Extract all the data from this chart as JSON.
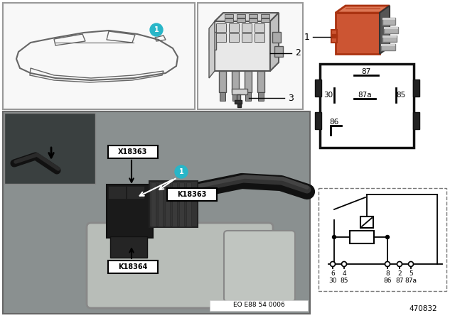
{
  "bg_color": "#ffffff",
  "fig_width": 6.4,
  "fig_height": 4.48,
  "dpi": 100,
  "relay_orange": "#cc5533",
  "relay_orange_dark": "#aa3311",
  "relay_orange_light": "#dd7755",
  "teal": "#29b6c8",
  "photo_bg": "#8a9090",
  "photo_bg2": "#7a8888",
  "dark_photo_bg": "#3a4040",
  "car_box_bg": "#f0f0f0",
  "socket_box_bg": "#f5f5f5",
  "eo_text": "EO E88 54 0006",
  "part_num": "470832",
  "pin_top": "87",
  "pin_mid_l": "30",
  "pin_mid_c": "87a",
  "pin_mid_r": "85",
  "pin_bot": "86",
  "schematic_nums": [
    "6",
    "4",
    "8",
    "2",
    "5"
  ],
  "schematic_names": [
    "30",
    "85",
    "86",
    "87",
    "87a"
  ]
}
